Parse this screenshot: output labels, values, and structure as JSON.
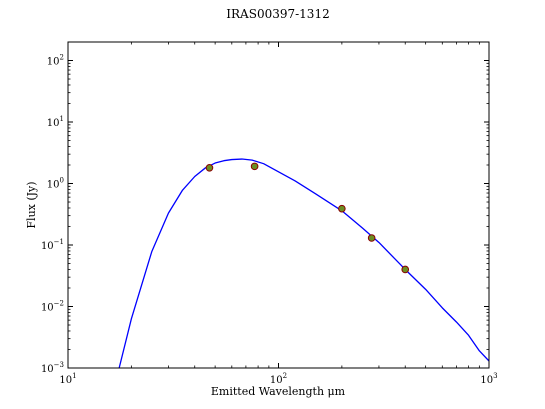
{
  "chart_data": {
    "type": "scatter",
    "title": "IRAS00397-1312",
    "xlabel": "Emitted Wavelength μm",
    "ylabel": "Flux (Jy)",
    "xscale": "log",
    "yscale": "log",
    "xlim": [
      10,
      1000
    ],
    "ylim": [
      0.001,
      200
    ],
    "x_ticks": [
      {
        "base": "10",
        "exp": "1",
        "value": 10
      },
      {
        "base": "10",
        "exp": "2",
        "value": 100
      },
      {
        "base": "10",
        "exp": "3",
        "value": 1000
      }
    ],
    "y_ticks": [
      {
        "base": "10",
        "exp": "−3",
        "value": 0.001
      },
      {
        "base": "10",
        "exp": "−2",
        "value": 0.01
      },
      {
        "base": "10",
        "exp": "−1",
        "value": 0.1
      },
      {
        "base": "10",
        "exp": "0",
        "value": 1
      },
      {
        "base": "10",
        "exp": "1",
        "value": 10
      },
      {
        "base": "10",
        "exp": "2",
        "value": 100
      }
    ],
    "grid": false,
    "series": [
      {
        "kind": "points",
        "color": "#6b8e23",
        "edge_color": "#8b0000",
        "points": [
          {
            "x": 47,
            "y": 1.8
          },
          {
            "x": 77,
            "y": 1.9
          },
          {
            "x": 200,
            "y": 0.39
          },
          {
            "x": 277,
            "y": 0.13
          },
          {
            "x": 400,
            "y": 0.04
          }
        ]
      },
      {
        "kind": "line",
        "color": "#0000ff",
        "points": [
          {
            "x": 17.5,
            "y": 0.001
          },
          {
            "x": 20,
            "y": 0.0063
          },
          {
            "x": 25,
            "y": 0.078
          },
          {
            "x": 30,
            "y": 0.33
          },
          {
            "x": 35,
            "y": 0.78
          },
          {
            "x": 40,
            "y": 1.3
          },
          {
            "x": 45,
            "y": 1.8
          },
          {
            "x": 50,
            "y": 2.15
          },
          {
            "x": 55,
            "y": 2.35
          },
          {
            "x": 60,
            "y": 2.45
          },
          {
            "x": 67,
            "y": 2.5
          },
          {
            "x": 75,
            "y": 2.4
          },
          {
            "x": 85,
            "y": 2.1
          },
          {
            "x": 100,
            "y": 1.55
          },
          {
            "x": 120,
            "y": 1.1
          },
          {
            "x": 150,
            "y": 0.68
          },
          {
            "x": 200,
            "y": 0.36
          },
          {
            "x": 250,
            "y": 0.19
          },
          {
            "x": 300,
            "y": 0.11
          },
          {
            "x": 400,
            "y": 0.04
          },
          {
            "x": 500,
            "y": 0.019
          },
          {
            "x": 600,
            "y": 0.0095
          },
          {
            "x": 700,
            "y": 0.0056
          },
          {
            "x": 800,
            "y": 0.0034
          },
          {
            "x": 900,
            "y": 0.0019
          },
          {
            "x": 1000,
            "y": 0.0013
          }
        ]
      }
    ]
  }
}
